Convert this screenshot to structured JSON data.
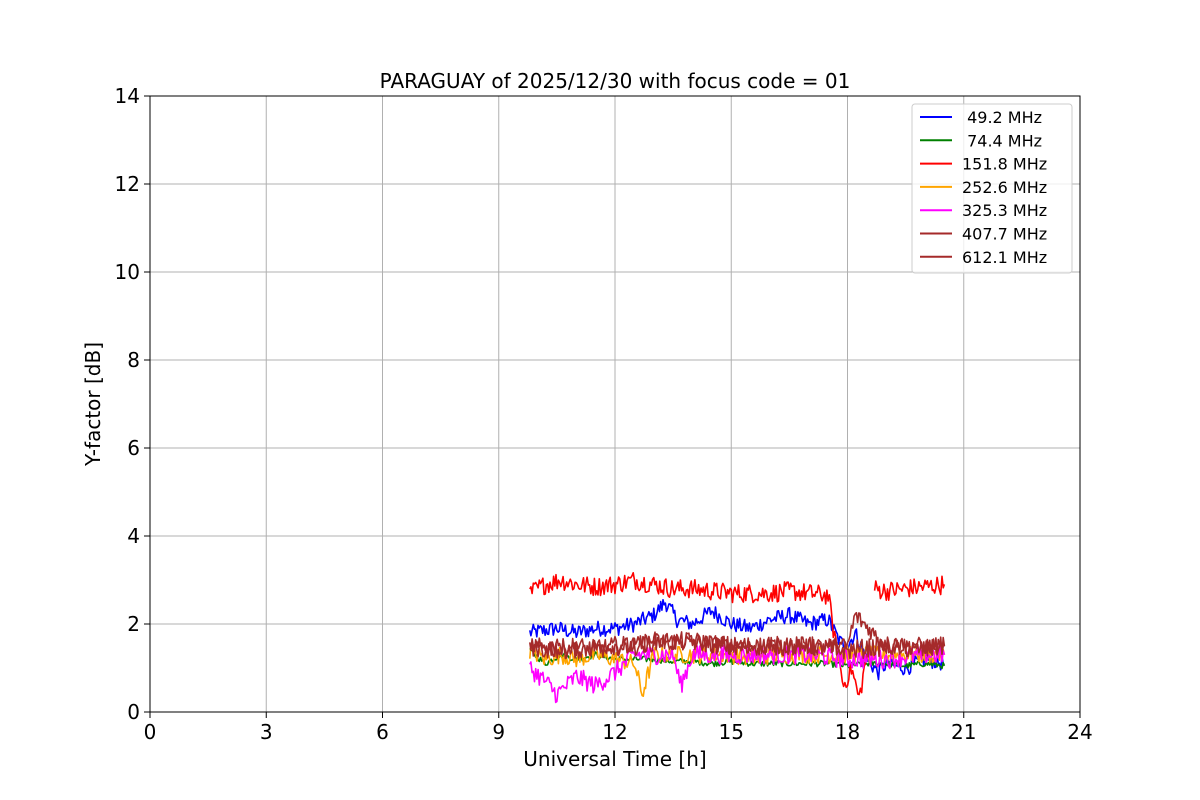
{
  "chart_data": {
    "type": "line",
    "title": "PARAGUAY of 2025/12/30 with focus code = 01",
    "xlabel": "Universal Time [h]",
    "ylabel": "Y-factor [dB]",
    "xlim": [
      0,
      24
    ],
    "ylim": [
      0,
      14
    ],
    "xticks": [
      0,
      3,
      6,
      9,
      12,
      15,
      18,
      21,
      24
    ],
    "yticks": [
      0,
      2,
      4,
      6,
      8,
      10,
      12,
      14
    ],
    "grid": true,
    "legend_position": "top-right",
    "data_note": "Noisy time series; values sampled approximately from the figure.",
    "series": [
      {
        "name": " 49.2 MHz",
        "color": "#0000ff",
        "segments": [
          {
            "x": [
              9.8,
              10.5,
              11.0,
              11.5,
              12.0,
              12.5,
              13.0,
              13.3,
              13.6,
              14.0,
              14.5,
              15.0,
              15.5,
              16.0,
              16.5,
              17.0,
              17.5,
              17.8,
              18.0,
              18.2,
              18.5,
              18.8,
              19.0,
              19.5,
              20.0,
              20.5
            ],
            "y": [
              1.8,
              1.9,
              1.8,
              1.9,
              1.9,
              2.0,
              2.2,
              2.5,
              2.1,
              2.0,
              2.3,
              2.0,
              1.9,
              2.1,
              2.2,
              2.0,
              2.1,
              1.6,
              1.5,
              1.8,
              1.2,
              0.9,
              1.1,
              1.0,
              1.2,
              1.1
            ]
          }
        ]
      },
      {
        "name": " 74.4 MHz",
        "color": "#008000",
        "segments": [
          {
            "x": [
              9.8,
              10.2,
              10.6,
              11.0,
              11.5,
              12.0,
              12.5,
              13.0,
              13.5,
              14.0,
              14.5,
              15.0,
              15.5,
              16.0,
              16.5,
              17.0,
              17.5,
              18.0,
              18.5,
              19.0,
              19.5,
              20.0,
              20.5
            ],
            "y": [
              1.4,
              1.1,
              1.3,
              1.2,
              1.3,
              1.2,
              1.2,
              1.2,
              1.15,
              1.15,
              1.1,
              1.15,
              1.1,
              1.1,
              1.1,
              1.1,
              1.1,
              1.05,
              1.1,
              1.1,
              1.05,
              1.1,
              1.05
            ]
          }
        ]
      },
      {
        "name": "151.8 MHz",
        "color": "#ff0000",
        "segments": [
          {
            "x": [
              9.8,
              10.2,
              10.6,
              11.0,
              11.5,
              12.0,
              12.5,
              13.0,
              13.5,
              14.0,
              14.5,
              15.0,
              15.5,
              16.0,
              16.5,
              17.0,
              17.5,
              17.7,
              17.9,
              18.1,
              18.3,
              18.5
            ],
            "y": [
              2.7,
              2.9,
              3.0,
              2.9,
              2.85,
              2.9,
              3.0,
              2.9,
              2.8,
              2.8,
              2.75,
              2.7,
              2.7,
              2.7,
              2.75,
              2.7,
              2.65,
              1.5,
              0.6,
              1.0,
              0.3,
              1.3
            ]
          },
          {
            "x": [
              18.7,
              19.0,
              19.5,
              20.0,
              20.5
            ],
            "y": [
              2.8,
              2.75,
              2.8,
              2.85,
              2.9
            ]
          }
        ]
      },
      {
        "name": "252.6 MHz",
        "color": "#ffa500",
        "segments": [
          {
            "x": [
              9.8,
              10.2,
              10.6,
              11.0,
              11.5,
              12.0,
              12.5,
              12.7,
              13.0,
              14.0,
              15.0,
              15.8,
              16.0,
              17.0,
              18.0,
              19.0,
              20.0,
              20.5
            ],
            "y": [
              1.4,
              1.2,
              1.3,
              1.2,
              1.3,
              1.2,
              1.1,
              0.4,
              1.3,
              1.3,
              1.3,
              1.2,
              1.3,
              1.3,
              1.3,
              1.3,
              1.3,
              1.3
            ]
          }
        ]
      },
      {
        "name": "325.3 MHz",
        "color": "#ff00ff",
        "segments": [
          {
            "x": [
              9.8,
              10.2,
              10.5,
              11.0,
              11.5,
              12.0,
              12.5,
              13.0,
              13.5,
              13.7,
              14.0,
              15.0,
              16.0,
              17.0,
              18.0,
              19.0,
              20.0,
              20.5
            ],
            "y": [
              1.0,
              0.7,
              0.4,
              0.8,
              0.6,
              0.9,
              1.3,
              1.3,
              1.3,
              0.6,
              1.3,
              1.3,
              1.3,
              1.3,
              1.2,
              1.2,
              1.3,
              1.3
            ]
          }
        ]
      },
      {
        "name": "407.7 MHz",
        "color": "#a52a2a",
        "segments": [
          {
            "x": [
              9.8,
              10.2,
              10.6,
              11.0,
              11.5,
              12.0,
              12.5,
              13.0,
              14.0,
              15.0,
              16.0,
              17.0,
              18.0,
              18.2,
              19.0,
              20.0,
              20.5
            ],
            "y": [
              1.5,
              1.4,
              1.5,
              1.4,
              1.5,
              1.5,
              1.5,
              1.6,
              1.6,
              1.5,
              1.5,
              1.5,
              1.5,
              2.2,
              1.5,
              1.5,
              1.5
            ]
          }
        ]
      },
      {
        "name": "612.1 MHz",
        "color": "#a52a2a",
        "segments": [
          {
            "x": [
              9.8,
              10.2,
              10.6,
              11.0,
              11.5,
              12.0,
              12.5,
              13.0,
              14.0,
              15.0,
              16.0,
              17.0,
              18.0,
              19.0,
              20.0,
              20.5
            ],
            "y": [
              1.4,
              1.5,
              1.4,
              1.5,
              1.4,
              1.5,
              1.5,
              1.6,
              1.6,
              1.5,
              1.5,
              1.5,
              1.4,
              1.5,
              1.4,
              1.5
            ]
          }
        ]
      }
    ]
  }
}
